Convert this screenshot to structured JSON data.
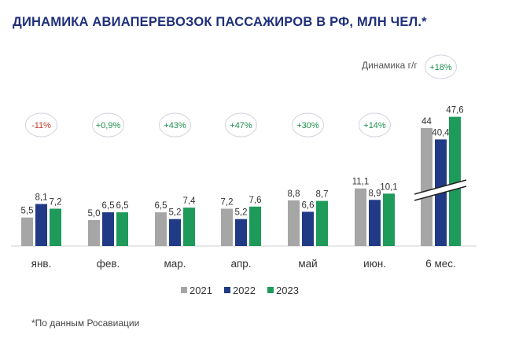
{
  "title": "ДИНАМИКА АВИАПЕРЕВОЗОК ПАССАЖИРОВ В РФ, МЛН ЧЕЛ.*",
  "dynamics_label": "Динамика г/г",
  "footnote": "*По данным Росавиации",
  "colors": {
    "2021": "#a6a6a6",
    "2022": "#203a86",
    "2023": "#1e9a5a",
    "positive": "#1f8f4e",
    "negative": "#c0392b"
  },
  "chart_data": {
    "type": "bar",
    "title": "ДИНАМИКА АВИАПЕРЕВОЗОК ПАССАЖИРОВ В РФ, МЛН ЧЕЛ.*",
    "categories": [
      "янв.",
      "фев.",
      "мар.",
      "апр.",
      "май",
      "июн.",
      "6 мес."
    ],
    "series": [
      {
        "name": "2021",
        "values": [
          5.5,
          5.0,
          6.5,
          7.2,
          8.8,
          11.1,
          44
        ],
        "labels": [
          "5,5",
          "5,0",
          "6,5",
          "7,2",
          "8,8",
          "11,1",
          "44"
        ]
      },
      {
        "name": "2022",
        "values": [
          8.1,
          6.5,
          5.2,
          5.2,
          6.6,
          8.9,
          40.4
        ],
        "labels": [
          "8,1",
          "6,5",
          "5,2",
          "5,2",
          "6,6",
          "8,9",
          "40,4"
        ]
      },
      {
        "name": "2023",
        "values": [
          7.2,
          6.5,
          7.4,
          7.6,
          8.7,
          10.1,
          47.6
        ],
        "labels": [
          "7,2",
          "6,5",
          "7,4",
          "7,6",
          "8,7",
          "10,1",
          "47,6"
        ]
      }
    ],
    "yoy": [
      "-11%",
      "+0,9%",
      "+43%",
      "+47%",
      "+30%",
      "+14%",
      "+18%"
    ],
    "axis_break_on_last_category": true,
    "legend_position": "bottom",
    "grid": false
  }
}
